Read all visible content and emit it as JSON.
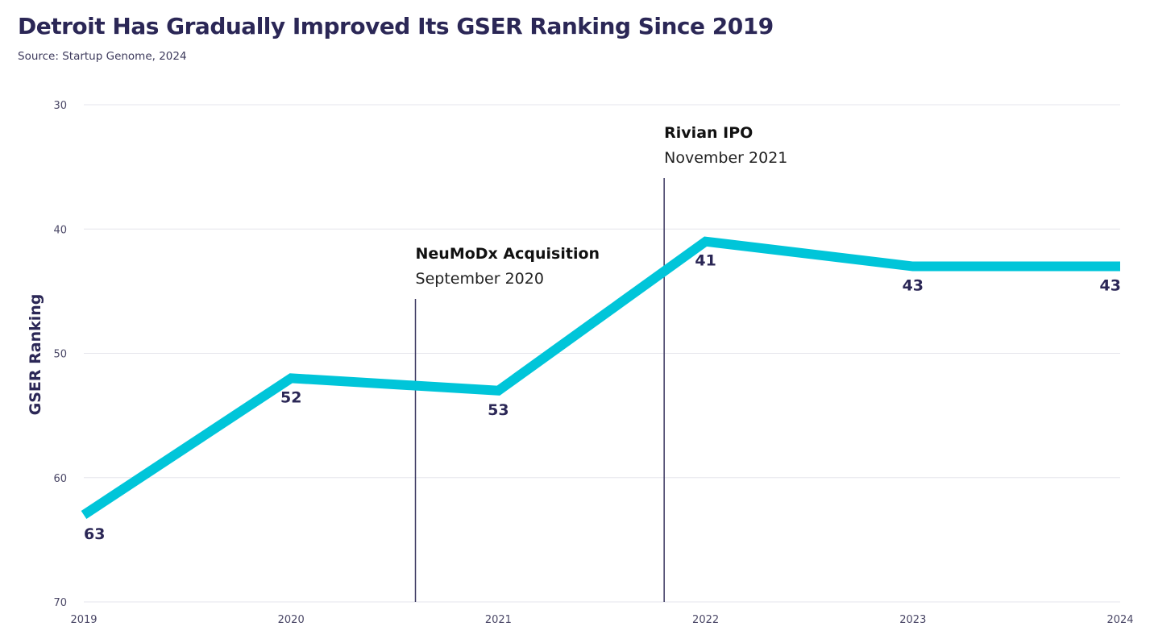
{
  "chart_data": {
    "type": "line",
    "title": "Detroit Has Gradually Improved Its GSER Ranking Since 2019",
    "subtitle": "Source: Startup Genome, 2024",
    "xlabel": "",
    "ylabel": "GSER Ranking",
    "x": [
      "2019",
      "2020",
      "2021",
      "2022",
      "2023",
      "2024"
    ],
    "values": [
      63,
      52,
      53,
      41,
      43,
      43
    ],
    "data_labels": [
      "63",
      "52",
      "53",
      "41",
      "43",
      "43"
    ],
    "ylim": [
      30,
      70
    ],
    "y_inverted": true,
    "yticks": [
      "30",
      "40",
      "50",
      "60",
      "70"
    ],
    "grid": true,
    "line_color": "#00c5d9",
    "annotations": [
      {
        "x": 2020.6,
        "title": "NeuMoDx Acquisition",
        "subtitle": "September 2020"
      },
      {
        "x": 2021.8,
        "title": "Rivian IPO",
        "subtitle": "November 2021"
      }
    ]
  }
}
